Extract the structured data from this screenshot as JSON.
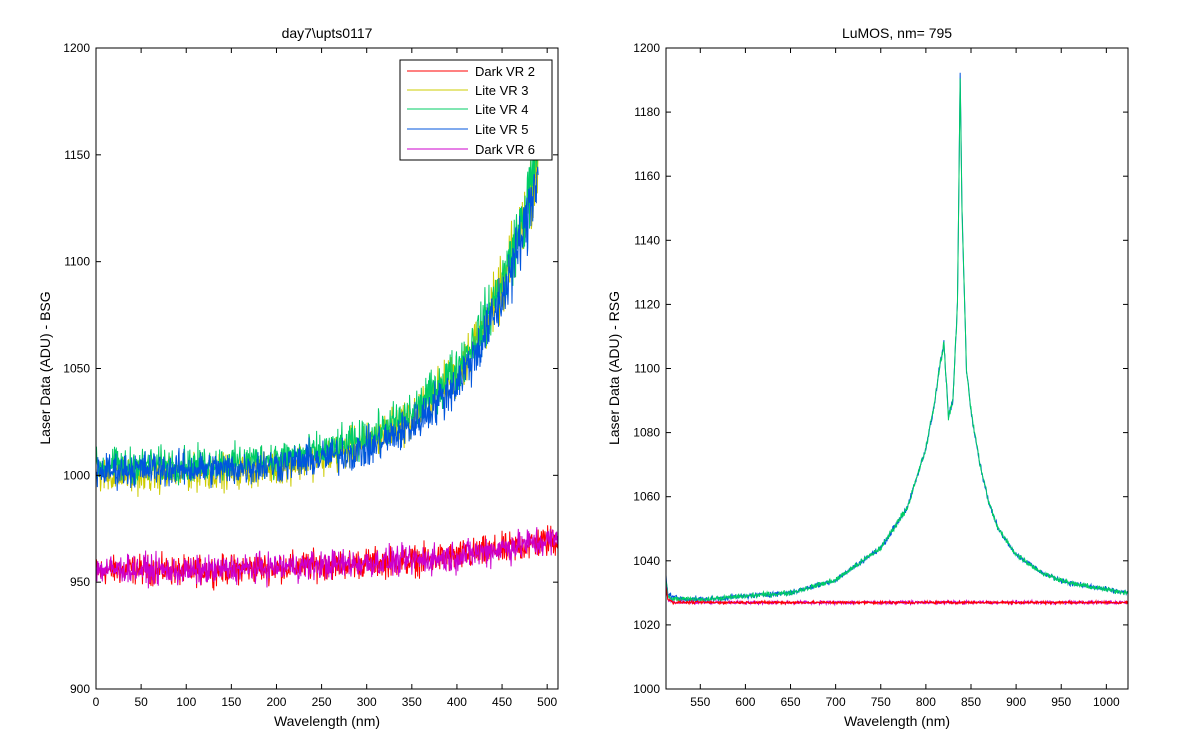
{
  "chart_data": [
    {
      "type": "line",
      "title": "day7\\upts0117",
      "xlabel": "Wavelength (nm)",
      "ylabel": "Laser Data (ADU) - BSG",
      "xlim": [
        0,
        512
      ],
      "ylim": [
        900,
        1200
      ],
      "xticks": [
        0,
        50,
        100,
        150,
        200,
        250,
        300,
        350,
        400,
        450,
        500
      ],
      "yticks": [
        900,
        950,
        1000,
        1050,
        1100,
        1150,
        1200
      ],
      "grid": false,
      "legend_position": "top-right",
      "series": [
        {
          "name": "Dark VR 2",
          "color": "#ff0000",
          "x": [
            0,
            50,
            100,
            150,
            200,
            250,
            300,
            350,
            400,
            450,
            512
          ],
          "y": [
            955,
            956,
            955,
            956,
            957,
            958,
            959,
            960,
            962,
            965,
            970
          ],
          "noise": 5
        },
        {
          "name": "Lite VR 3",
          "color": "#cccc00",
          "x": [
            0,
            50,
            100,
            150,
            200,
            250,
            300,
            350,
            400,
            425,
            450,
            475,
            490
          ],
          "y": [
            1000,
            1000,
            1001,
            1002,
            1004,
            1008,
            1015,
            1027,
            1048,
            1065,
            1088,
            1120,
            1150
          ],
          "noise": 6
        },
        {
          "name": "Lite VR 4",
          "color": "#00cc66",
          "x": [
            0,
            50,
            100,
            150,
            200,
            250,
            300,
            350,
            400,
            425,
            450,
            475,
            490
          ],
          "y": [
            1004,
            1005,
            1005,
            1006,
            1008,
            1011,
            1017,
            1029,
            1050,
            1067,
            1090,
            1122,
            1152
          ],
          "noise": 6
        },
        {
          "name": "Lite VR 5",
          "color": "#0055dd",
          "x": [
            0,
            50,
            100,
            150,
            200,
            250,
            300,
            350,
            400,
            425,
            450,
            475,
            490
          ],
          "y": [
            1002,
            1003,
            1003,
            1003,
            1005,
            1008,
            1012,
            1023,
            1043,
            1060,
            1083,
            1115,
            1145
          ],
          "noise": 6
        },
        {
          "name": "Dark VR 6",
          "color": "#cc00cc",
          "x": [
            0,
            50,
            100,
            150,
            200,
            250,
            300,
            350,
            400,
            450,
            512
          ],
          "y": [
            956,
            956,
            955,
            956,
            957,
            958,
            959,
            960,
            962,
            966,
            970
          ],
          "noise": 5
        }
      ]
    },
    {
      "type": "line",
      "title": "LuMOS, nm= 795",
      "xlabel": "Wavelength (nm)",
      "ylabel": "Laser Data (ADU) - RSG",
      "xlim": [
        512,
        1024
      ],
      "ylim": [
        1000,
        1200
      ],
      "xticks": [
        550,
        600,
        650,
        700,
        750,
        800,
        850,
        900,
        950,
        1000
      ],
      "yticks": [
        1000,
        1020,
        1040,
        1060,
        1080,
        1100,
        1120,
        1140,
        1160,
        1180,
        1200
      ],
      "grid": false,
      "series": [
        {
          "color": "#0055dd",
          "x": [
            512,
            514,
            518,
            530,
            560,
            600,
            650,
            700,
            750,
            780,
            800,
            810,
            815,
            820,
            825,
            830,
            835,
            838,
            840,
            845,
            850,
            860,
            870,
            880,
            900,
            930,
            960,
            1000,
            1024
          ],
          "y": [
            1035,
            1030,
            1029,
            1028,
            1028,
            1029,
            1030,
            1034,
            1044,
            1057,
            1075,
            1090,
            1100,
            1108,
            1085,
            1090,
            1120,
            1192,
            1150,
            1100,
            1087,
            1070,
            1058,
            1050,
            1042,
            1036,
            1033,
            1031,
            1030
          ],
          "noise": 0.6
        },
        {
          "color": "#00cc66",
          "x": [
            512,
            514,
            518,
            530,
            560,
            600,
            650,
            700,
            750,
            780,
            800,
            810,
            815,
            820,
            825,
            830,
            835,
            838,
            840,
            845,
            850,
            860,
            870,
            880,
            900,
            930,
            960,
            1000,
            1024
          ],
          "y": [
            1034,
            1029,
            1028,
            1028,
            1028,
            1029,
            1030,
            1034,
            1044,
            1057,
            1075,
            1090,
            1100,
            1108,
            1085,
            1090,
            1120,
            1190,
            1150,
            1100,
            1087,
            1070,
            1058,
            1050,
            1042,
            1036,
            1033,
            1031,
            1030
          ],
          "noise": 0.6
        },
        {
          "color": "#cc00cc",
          "x": [
            512,
            514,
            520,
            1024
          ],
          "y": [
            1033,
            1028,
            1027,
            1027
          ],
          "noise": 0.4
        },
        {
          "color": "#ff0000",
          "x": [
            512,
            514,
            520,
            1024
          ],
          "y": [
            1032,
            1028,
            1027,
            1027
          ],
          "noise": 0.3
        }
      ]
    }
  ]
}
